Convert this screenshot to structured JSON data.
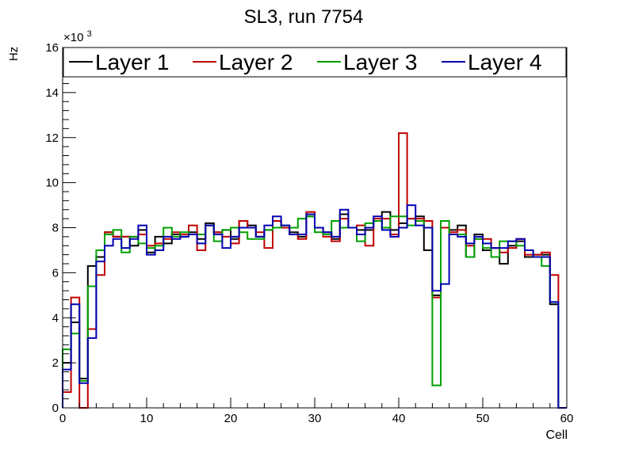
{
  "chart_data": {
    "type": "step",
    "title": "SL3, run 7754",
    "xlabel": "Cell",
    "ylabel": "Hz",
    "y_multiplier_label": "×10",
    "y_multiplier_exponent": "3",
    "xlim": [
      0,
      60
    ],
    "ylim": [
      0,
      16
    ],
    "x_ticks": [
      0,
      10,
      20,
      30,
      40,
      50,
      60
    ],
    "y_ticks": [
      0,
      2,
      4,
      6,
      8,
      10,
      12,
      14,
      16
    ],
    "legend_position": "top",
    "series": [
      {
        "name": "Layer 1",
        "color": "#000000",
        "values": [
          2.0,
          3.8,
          1.3,
          6.3,
          6.7,
          7.8,
          7.6,
          7.6,
          7.2,
          7.9,
          6.9,
          7.6,
          7.3,
          7.7,
          7.6,
          7.8,
          7.5,
          8.2,
          7.8,
          7.9,
          7.5,
          8.3,
          8.1,
          7.6,
          7.9,
          8.3,
          8.0,
          7.8,
          7.6,
          8.5,
          8.0,
          7.8,
          7.5,
          8.6,
          8.0,
          7.9,
          7.9,
          8.3,
          8.7,
          7.9,
          8.2,
          8.4,
          8.5,
          7.0,
          5.0,
          8.0,
          7.9,
          8.1,
          6.7,
          7.7,
          7.0,
          7.1,
          6.4,
          7.2,
          7.4,
          6.7,
          6.8,
          6.8,
          4.6,
          0.0
        ]
      },
      {
        "name": "Layer 2",
        "color": "#c00000",
        "values": [
          0.7,
          4.9,
          0.0,
          3.5,
          5.9,
          7.8,
          7.6,
          7.6,
          7.6,
          7.7,
          7.2,
          7.3,
          7.5,
          7.8,
          7.7,
          8.1,
          7.0,
          8.1,
          7.8,
          7.6,
          7.3,
          8.3,
          8.0,
          7.8,
          7.1,
          8.3,
          8.0,
          7.7,
          7.5,
          8.7,
          8.0,
          7.6,
          7.4,
          8.4,
          8.0,
          8.1,
          7.2,
          8.4,
          8.4,
          7.7,
          12.2,
          8.4,
          8.4,
          8.3,
          4.9,
          8.0,
          7.8,
          7.9,
          7.2,
          7.5,
          7.5,
          7.1,
          6.9,
          7.1,
          7.5,
          6.8,
          6.8,
          6.9,
          5.9,
          0.0
        ]
      },
      {
        "name": "Layer 3",
        "color": "#00a000",
        "values": [
          2.6,
          3.3,
          1.2,
          5.4,
          7.0,
          7.7,
          7.9,
          6.9,
          7.6,
          7.3,
          7.1,
          7.2,
          8.0,
          7.6,
          7.8,
          7.7,
          7.7,
          8.1,
          7.4,
          7.9,
          8.0,
          7.8,
          7.5,
          7.5,
          7.9,
          8.0,
          8.1,
          8.0,
          8.4,
          8.5,
          7.8,
          7.7,
          8.3,
          8.0,
          8.0,
          7.4,
          8.2,
          8.3,
          8.0,
          8.5,
          8.5,
          8.1,
          8.3,
          8.0,
          1.0,
          8.3,
          7.7,
          7.7,
          6.7,
          7.5,
          7.1,
          6.7,
          7.4,
          7.4,
          7.2,
          7.0,
          6.7,
          6.3,
          4.7,
          0.0
        ]
      },
      {
        "name": "Layer 4",
        "color": "#0000b0",
        "values": [
          1.7,
          4.6,
          1.1,
          3.1,
          6.5,
          7.2,
          7.5,
          7.1,
          7.5,
          8.1,
          6.8,
          7.0,
          7.6,
          7.5,
          7.6,
          7.7,
          7.3,
          8.1,
          7.7,
          7.1,
          7.6,
          8.0,
          8.0,
          7.6,
          8.1,
          8.5,
          8.1,
          7.7,
          7.7,
          8.6,
          8.0,
          7.8,
          7.6,
          8.8,
          8.0,
          7.7,
          8.0,
          8.5,
          7.9,
          7.6,
          8.0,
          9.0,
          8.1,
          8.0,
          5.2,
          5.5,
          7.7,
          7.6,
          7.3,
          7.6,
          7.3,
          7.1,
          7.1,
          7.4,
          7.5,
          7.0,
          6.7,
          6.7,
          4.7,
          0.0
        ]
      }
    ]
  }
}
